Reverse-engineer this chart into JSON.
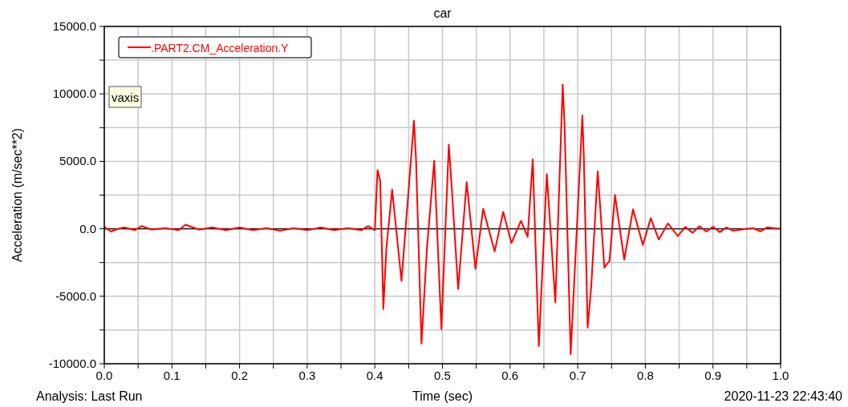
{
  "chart_data": {
    "type": "line",
    "title": "car",
    "xlabel": "Time (sec)",
    "ylabel": "Acceleration (m/sec**2)",
    "annotations": [
      "Analysis: Last Run",
      "2020-11-23 22:43:40",
      "vaxis"
    ],
    "legend": "top left",
    "grid": true,
    "marker": "none",
    "line_style": "solid",
    "ref_lines": [
      {
        "axis": "y",
        "value": 0,
        "color": "#000000"
      }
    ],
    "xlim": [
      0,
      1
    ],
    "ylim": [
      -10000,
      15000
    ],
    "xticks": [
      {
        "value": 0,
        "label": "0.0"
      },
      {
        "value": 0.05,
        "label": null
      },
      {
        "value": 0.1,
        "label": "0.1"
      },
      {
        "value": 0.15,
        "label": null
      },
      {
        "value": 0.2,
        "label": "0.2"
      },
      {
        "value": 0.25,
        "label": null
      },
      {
        "value": 0.3,
        "label": "0.3"
      },
      {
        "value": 0.35,
        "label": null
      },
      {
        "value": 0.4,
        "label": "0.4"
      },
      {
        "value": 0.45,
        "label": null
      },
      {
        "value": 0.5,
        "label": "0.5"
      },
      {
        "value": 0.55,
        "label": null
      },
      {
        "value": 0.6,
        "label": "0.6"
      },
      {
        "value": 0.65,
        "label": null
      },
      {
        "value": 0.7,
        "label": "0.7"
      },
      {
        "value": 0.75,
        "label": null
      },
      {
        "value": 0.8,
        "label": "0.8"
      },
      {
        "value": 0.85,
        "label": null
      },
      {
        "value": 0.9,
        "label": "0.9"
      },
      {
        "value": 0.95,
        "label": null
      },
      {
        "value": 1,
        "label": "1.0"
      }
    ],
    "yticks": [
      {
        "value": -10000,
        "label": "-10000.0"
      },
      {
        "value": -7500,
        "label": null
      },
      {
        "value": -5000,
        "label": "-5000.0"
      },
      {
        "value": -2500,
        "label": null
      },
      {
        "value": 0,
        "label": "0.0"
      },
      {
        "value": 2500,
        "label": null
      },
      {
        "value": 5000,
        "label": "5000.0"
      },
      {
        "value": 7500,
        "label": null
      },
      {
        "value": 10000,
        "label": "10000.0"
      },
      {
        "value": 12500,
        "label": null
      },
      {
        "value": 15000,
        "label": "15000.0"
      }
    ],
    "series": [
      {
        "name": ".PART2.CM_Acceleration.Y",
        "color": "#ff0000",
        "x": [
          0,
          0.01,
          0.02,
          0.03,
          0.045,
          0.055,
          0.07,
          0.09,
          0.11,
          0.12,
          0.14,
          0.16,
          0.18,
          0.2,
          0.22,
          0.24,
          0.26,
          0.28,
          0.3,
          0.32,
          0.34,
          0.36,
          0.38,
          0.39,
          0.4,
          0.404,
          0.408,
          0.4126,
          0.417,
          0.4256,
          0.4394,
          0.449,
          0.4579,
          0.461,
          0.469,
          0.477,
          0.4878,
          0.4984,
          0.5094,
          0.514,
          0.5232,
          0.5358,
          0.5488,
          0.5602,
          0.5772,
          0.5898,
          0.602,
          0.616,
          0.626,
          0.6335,
          0.6425,
          0.6543,
          0.6669,
          0.6778,
          0.6806,
          0.6896,
          0.7069,
          0.709,
          0.7147,
          0.72,
          0.7296,
          0.7394,
          0.747,
          0.7551,
          0.7688,
          0.7818,
          0.7963,
          0.808,
          0.8198,
          0.8335,
          0.848,
          0.859,
          0.87,
          0.88,
          0.89,
          0.9,
          0.91,
          0.92,
          0.93,
          0.95,
          0.96,
          0.97,
          0.98,
          1
        ],
        "values": [
          150,
          -200,
          0,
          100,
          -100,
          200,
          -50,
          50,
          -100,
          300,
          -50,
          100,
          -100,
          100,
          -100,
          50,
          -150,
          50,
          -100,
          100,
          -100,
          50,
          -100,
          200,
          -100,
          4360,
          3560,
          -5940,
          -1500,
          2910,
          -3860,
          2280,
          8020,
          5050,
          -8510,
          -1490,
          5050,
          -7430,
          6240,
          2870,
          -4460,
          3470,
          -2970,
          1490,
          -1680,
          1250,
          -1050,
          590,
          -590,
          5150,
          -8700,
          4060,
          -5450,
          10700,
          7620,
          -9300,
          8400,
          5440,
          -7330,
          -4260,
          4260,
          -2870,
          -2380,
          2510,
          -2280,
          1450,
          -1190,
          790,
          -790,
          400,
          -530,
          140,
          -300,
          200,
          -200,
          150,
          -250,
          100,
          -150,
          0,
          50,
          -200,
          100,
          0
        ]
      }
    ]
  }
}
